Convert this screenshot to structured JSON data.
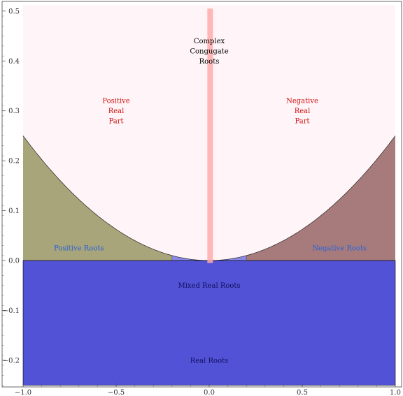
{
  "chart_data": {
    "type": "area",
    "xlim": [
      -1.0,
      1.0
    ],
    "ylim": [
      -0.25,
      0.5
    ],
    "x_ticks": [
      {
        "value": -1.0,
        "label": "−1.0"
      },
      {
        "value": -0.5,
        "label": "−0.5"
      },
      {
        "value": 0.0,
        "label": "0.0"
      },
      {
        "value": 0.5,
        "label": "0.5"
      },
      {
        "value": 1.0,
        "label": "1.0"
      }
    ],
    "y_ticks": [
      {
        "value": -0.2,
        "label": "−0.2"
      },
      {
        "value": -0.1,
        "label": "−0.1"
      },
      {
        "value": 0.0,
        "label": "0.0"
      },
      {
        "value": 0.1,
        "label": "0.1"
      },
      {
        "value": 0.2,
        "label": "0.2"
      },
      {
        "value": 0.3,
        "label": "0.3"
      },
      {
        "value": 0.4,
        "label": "0.4"
      },
      {
        "value": 0.5,
        "label": "0.5"
      }
    ],
    "boundary_curve": {
      "equation": "y = x^2 / 4",
      "x_range": [
        -1.0,
        1.0
      ]
    },
    "small_x_boundary": 0.2,
    "regions": [
      {
        "key": "complex",
        "label_lines": [
          "Complex",
          "Congugate",
          "Roots"
        ],
        "label_x": 0.0,
        "label_y": 0.42,
        "label_color": "#000000",
        "fill": "#fff5f8"
      },
      {
        "key": "positive_real_part",
        "label_lines": [
          "Positive",
          "Real",
          "Part"
        ],
        "label_x": -0.5,
        "label_y": 0.3,
        "label_color": "#d01010"
      },
      {
        "key": "negative_real_part",
        "label_lines": [
          "Negative",
          "Real",
          "Part"
        ],
        "label_x": 0.5,
        "label_y": 0.3,
        "label_color": "#d01010"
      },
      {
        "key": "positive_roots",
        "label_lines": [
          "Positive Roots"
        ],
        "label_x": -0.7,
        "label_y": 0.025,
        "label_color": "#2a62d8",
        "fill": "#a8a57a"
      },
      {
        "key": "negative_roots",
        "label_lines": [
          "Negative Roots"
        ],
        "label_x": 0.7,
        "label_y": 0.025,
        "label_color": "#2a62d8",
        "fill": "#a77b7b"
      },
      {
        "key": "mixed_real_roots",
        "label_lines": [
          "Mixed Real Roots"
        ],
        "label_x": 0.0,
        "label_y": -0.05,
        "label_color": "#101060",
        "fill": "#5252d6"
      },
      {
        "key": "real_roots",
        "label_lines": [
          "Real Roots"
        ],
        "label_x": 0.0,
        "label_y": -0.2,
        "label_color": "#101060",
        "fill": "#5252d6"
      }
    ],
    "small_cap_fill": "#8a8ae6",
    "vertical_band": {
      "x_from": -0.01,
      "x_to": 0.02,
      "y_from": -0.005,
      "y_to": 0.505,
      "color": "#ffaaaa"
    },
    "grid": false
  }
}
